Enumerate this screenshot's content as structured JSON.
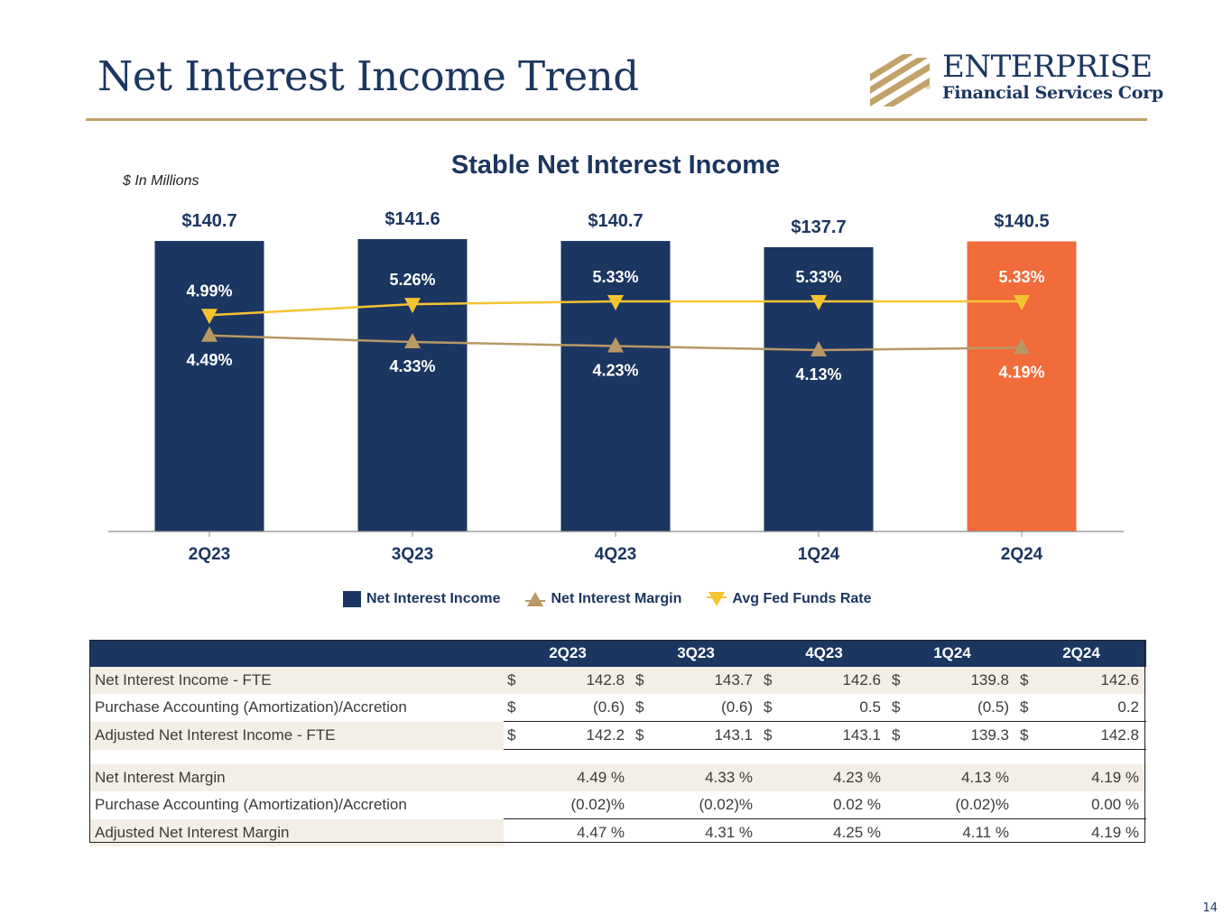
{
  "slide": {
    "title": "Net Interest Income Trend",
    "page_number": "14"
  },
  "logo": {
    "name": "ENTERPRISE",
    "subtitle": "Financial Services Corp",
    "registered": "®"
  },
  "colors": {
    "navy": "#1b3660",
    "gold": "#c1a269",
    "orange": "#f26b3a",
    "margin_line": "#b89865",
    "fed_line": "#f5c431",
    "table_shade": "#f4efe6"
  },
  "chart_data": {
    "type": "bar",
    "title": "Stable Net Interest Income",
    "unit_note": "$ In Millions",
    "categories": [
      "2Q23",
      "3Q23",
      "4Q23",
      "1Q24",
      "2Q24"
    ],
    "series": [
      {
        "name": "Net Interest Income",
        "kind": "bar",
        "values": [
          140.7,
          141.6,
          140.7,
          137.7,
          140.5
        ],
        "labels": [
          "$140.7",
          "$141.6",
          "$140.7",
          "$137.7",
          "$140.5"
        ],
        "colors": [
          "#1b3660",
          "#1b3660",
          "#1b3660",
          "#1b3660",
          "#f26b3a"
        ]
      },
      {
        "name": "Net Interest Margin",
        "kind": "line",
        "marker": "triangle-up",
        "values": [
          4.49,
          4.33,
          4.23,
          4.13,
          4.19
        ],
        "labels": [
          "4.49%",
          "4.33%",
          "4.23%",
          "4.13%",
          "4.19%"
        ]
      },
      {
        "name": "Avg Fed Funds Rate",
        "kind": "line",
        "marker": "triangle-down",
        "values": [
          4.99,
          5.26,
          5.33,
          5.33,
          5.33
        ],
        "labels": [
          "4.99%",
          "5.26%",
          "5.33%",
          "5.33%",
          "5.33%"
        ]
      }
    ],
    "legend": [
      "Net Interest Income",
      "Net Interest Margin",
      "Avg Fed Funds Rate"
    ],
    "legend_position": "bottom",
    "ylim": [
      0,
      141.6
    ],
    "grid": false
  },
  "table": {
    "columns": [
      "2Q23",
      "3Q23",
      "4Q23",
      "1Q24",
      "2Q24"
    ],
    "rows": [
      {
        "label": "Net Interest Income - FTE",
        "cur": "$",
        "values": [
          "142.8",
          "143.7",
          "142.6",
          "139.8",
          "142.6"
        ]
      },
      {
        "label": "Purchase Accounting (Amortization)/Accretion",
        "cur": "$",
        "values": [
          "(0.6)",
          "(0.6)",
          "0.5",
          "(0.5)",
          "0.2"
        ]
      },
      {
        "label": "Adjusted Net Interest Income - FTE",
        "cur": "$",
        "values": [
          "142.2",
          "143.1",
          "143.1",
          "139.3",
          "142.8"
        ]
      },
      {
        "label": "Net Interest Margin",
        "cur": "",
        "values": [
          "4.49 %",
          "4.33 %",
          "4.23 %",
          "4.13 %",
          "4.19 %"
        ]
      },
      {
        "label": "Purchase Accounting (Amortization)/Accretion",
        "cur": "",
        "values": [
          "(0.02)%",
          "(0.02)%",
          "0.02 %",
          "(0.02)%",
          "0.00 %"
        ]
      },
      {
        "label": "Adjusted Net Interest Margin",
        "cur": "",
        "values": [
          "4.47 %",
          "4.31 %",
          "4.25 %",
          "4.11 %",
          "4.19 %"
        ]
      }
    ]
  }
}
